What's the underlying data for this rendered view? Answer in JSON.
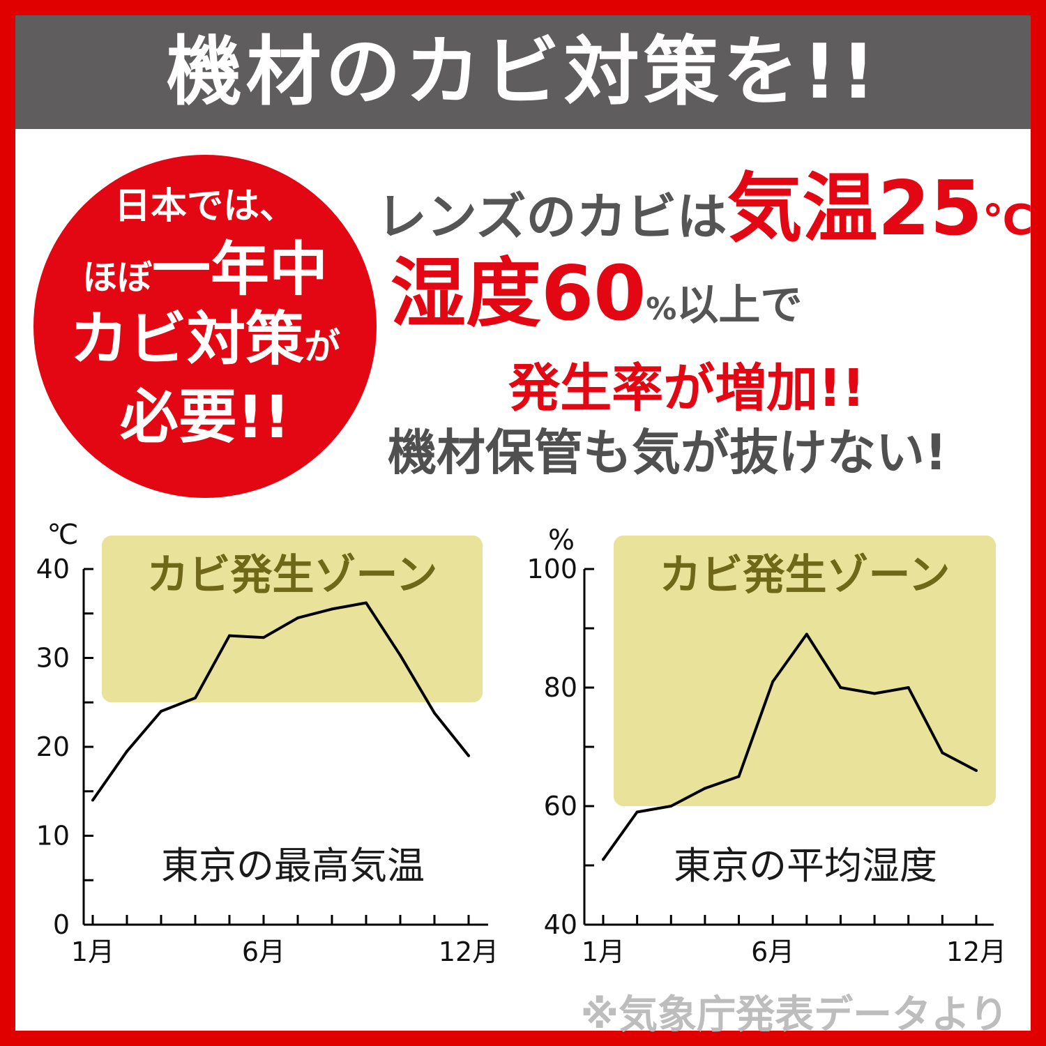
{
  "header": {
    "title": "機材のカビ対策を!!"
  },
  "badge": {
    "line1": "日本では、",
    "line2_prefix": "ほぼ",
    "line2_big": "一年中",
    "line3_big": "カビ対策",
    "line3_small": "が",
    "line4": "必要!!"
  },
  "message": {
    "line1_prefix": "レンズのカビは",
    "line1_red": "気温25",
    "line1_unit": "℃",
    "line2_red": "湿度60",
    "line2_pct": "%",
    "line2_suffix": "以上で",
    "line3": "発生率が増加!!",
    "line4": "機材保管も気が抜けない!"
  },
  "source_note": "※気象庁発表データより",
  "colors": {
    "frame": "#e00000",
    "header_bg": "#5f5d5d",
    "badge": "#e30613",
    "zone_fill": "#e9e29a",
    "zone_text": "#6f6818",
    "line": "#000000"
  },
  "chart_data": [
    {
      "type": "line",
      "caption": "東京の最高気温",
      "yunit": "℃",
      "ylim": [
        0,
        40
      ],
      "yticks": [
        0,
        10,
        20,
        30,
        40
      ],
      "x": [
        1,
        2,
        3,
        4,
        5,
        6,
        7,
        8,
        9,
        10,
        11,
        12
      ],
      "xtick_labels": [
        {
          "x": 1,
          "label": "1月"
        },
        {
          "x": 6,
          "label": "6月"
        },
        {
          "x": 12,
          "label": "12月"
        }
      ],
      "zone": {
        "label": "カビ発生ゾーン",
        "ymin": 25,
        "ymax": 40
      },
      "series": [
        {
          "values": [
            14,
            19.5,
            24,
            25.5,
            32.5,
            32.3,
            34.5,
            35.5,
            36.2,
            30.3,
            23.8,
            19
          ]
        }
      ]
    },
    {
      "type": "line",
      "caption": "東京の平均湿度",
      "yunit": "%",
      "ylim": [
        40,
        100
      ],
      "yticks": [
        40,
        60,
        80,
        100
      ],
      "x": [
        1,
        2,
        3,
        4,
        5,
        6,
        7,
        8,
        9,
        10,
        11,
        12
      ],
      "xtick_labels": [
        {
          "x": 1,
          "label": "1月"
        },
        {
          "x": 6,
          "label": "6月"
        },
        {
          "x": 12,
          "label": "12月"
        }
      ],
      "zone": {
        "label": "カビ発生ゾーン",
        "ymin": 60,
        "ymax": 100
      },
      "series": [
        {
          "values": [
            51,
            59,
            60,
            63,
            65,
            81,
            89,
            80,
            79,
            80,
            69,
            66
          ]
        }
      ]
    }
  ]
}
